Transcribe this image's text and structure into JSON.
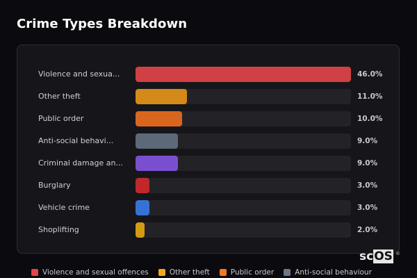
{
  "title": "Crime Types Breakdown",
  "chart_data": {
    "type": "bar",
    "orientation": "horizontal",
    "title": "Crime Types Breakdown",
    "categories": [
      "Violence and sexual offences",
      "Other theft",
      "Public order",
      "Anti-social behaviour",
      "Criminal damage and arson",
      "Burglary",
      "Vehicle crime",
      "Shoplifting"
    ],
    "display_labels": [
      "Violence and sexua...",
      "Other theft",
      "Public order",
      "Anti-social behavi...",
      "Criminal damage an...",
      "Burglary",
      "Vehicle crime",
      "Shoplifting"
    ],
    "values": [
      46.0,
      11.0,
      10.0,
      9.0,
      9.0,
      3.0,
      3.0,
      2.0
    ],
    "value_labels": [
      "46.0%",
      "11.0%",
      "10.0%",
      "9.0%",
      "9.0%",
      "3.0%",
      "3.0%",
      "2.0%"
    ],
    "colors": [
      "#d04044",
      "#d48a18",
      "#d9661e",
      "#5d6878",
      "#7a4fcf",
      "#c0282a",
      "#3672d6",
      "#d49a14"
    ],
    "xlim": [
      0,
      46
    ],
    "unit": "%",
    "legend_position": "bottom"
  },
  "legend": [
    {
      "label": "Violence and sexual offences",
      "color": "#e2444a"
    },
    {
      "label": "Other theft",
      "color": "#f0a81c"
    },
    {
      "label": "Public order",
      "color": "#f07a22"
    },
    {
      "label": "Anti-social behaviour",
      "color": "#6c788a"
    }
  ],
  "watermark": {
    "prefix": "sc",
    "boxed": "OS",
    "mark": "®"
  }
}
